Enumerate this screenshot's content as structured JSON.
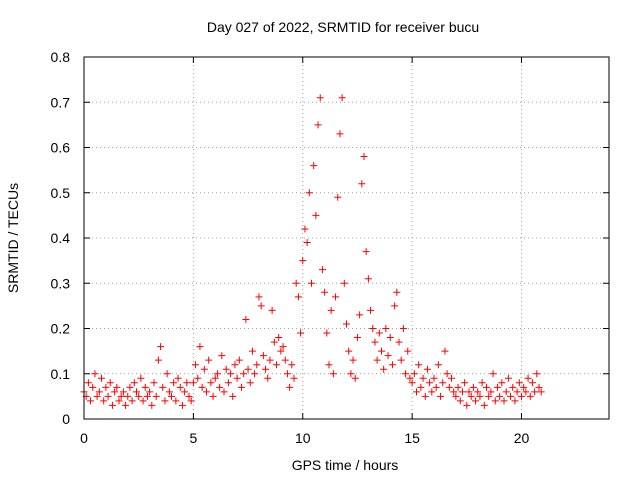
{
  "chart_data": {
    "type": "scatter",
    "title": "Day 027 of 2022, SRMTID for receiver bucu",
    "xlabel": "GPS time / hours",
    "ylabel": "SRMTID / TECUs",
    "xlim": [
      0,
      24
    ],
    "ylim": [
      0,
      0.8
    ],
    "xticks": [
      0,
      5,
      10,
      15,
      20
    ],
    "xtick_labels": [
      "0",
      "5",
      "10",
      "15",
      "20"
    ],
    "yticks": [
      0,
      0.1,
      0.2,
      0.3,
      0.4,
      0.5,
      0.6,
      0.7,
      0.8
    ],
    "ytick_labels": [
      "0",
      "0.1",
      "0.2",
      "0.3",
      "0.4",
      "0.5",
      "0.6",
      "0.7",
      "0.8"
    ],
    "grid": true,
    "marker": "+",
    "color": "#ff0000",
    "series": [
      {
        "name": "SRMTID",
        "points": [
          [
            0.0,
            0.06
          ],
          [
            0.1,
            0.05
          ],
          [
            0.2,
            0.08
          ],
          [
            0.3,
            0.04
          ],
          [
            0.4,
            0.07
          ],
          [
            0.5,
            0.1
          ],
          [
            0.6,
            0.05
          ],
          [
            0.7,
            0.06
          ],
          [
            0.8,
            0.09
          ],
          [
            0.9,
            0.04
          ],
          [
            1.0,
            0.07
          ],
          [
            1.1,
            0.05
          ],
          [
            1.2,
            0.08
          ],
          [
            1.3,
            0.03
          ],
          [
            1.4,
            0.06
          ],
          [
            1.5,
            0.07
          ],
          [
            1.6,
            0.04
          ],
          [
            1.7,
            0.05
          ],
          [
            1.8,
            0.06
          ],
          [
            1.9,
            0.03
          ],
          [
            2.0,
            0.05
          ],
          [
            2.1,
            0.07
          ],
          [
            2.2,
            0.04
          ],
          [
            2.3,
            0.08
          ],
          [
            2.4,
            0.06
          ],
          [
            2.5,
            0.05
          ],
          [
            2.6,
            0.09
          ],
          [
            2.7,
            0.04
          ],
          [
            2.8,
            0.07
          ],
          [
            2.9,
            0.05
          ],
          [
            3.0,
            0.06
          ],
          [
            3.1,
            0.03
          ],
          [
            3.2,
            0.08
          ],
          [
            3.3,
            0.05
          ],
          [
            3.4,
            0.13
          ],
          [
            3.5,
            0.16
          ],
          [
            3.6,
            0.07
          ],
          [
            3.7,
            0.04
          ],
          [
            3.8,
            0.1
          ],
          [
            3.9,
            0.06
          ],
          [
            4.0,
            0.05
          ],
          [
            4.1,
            0.08
          ],
          [
            4.2,
            0.04
          ],
          [
            4.3,
            0.09
          ],
          [
            4.4,
            0.07
          ],
          [
            4.5,
            0.03
          ],
          [
            4.6,
            0.06
          ],
          [
            4.7,
            0.08
          ],
          [
            4.8,
            0.05
          ],
          [
            4.9,
            0.04
          ],
          [
            5.0,
            0.08
          ],
          [
            5.1,
            0.12
          ],
          [
            5.2,
            0.09
          ],
          [
            5.3,
            0.16
          ],
          [
            5.4,
            0.07
          ],
          [
            5.5,
            0.11
          ],
          [
            5.6,
            0.06
          ],
          [
            5.7,
            0.13
          ],
          [
            5.8,
            0.08
          ],
          [
            5.9,
            0.05
          ],
          [
            6.0,
            0.09
          ],
          [
            6.1,
            0.1
          ],
          [
            6.2,
            0.07
          ],
          [
            6.3,
            0.14
          ],
          [
            6.4,
            0.06
          ],
          [
            6.5,
            0.11
          ],
          [
            6.6,
            0.08
          ],
          [
            6.7,
            0.1
          ],
          [
            6.8,
            0.05
          ],
          [
            6.9,
            0.12
          ],
          [
            7.0,
            0.09
          ],
          [
            7.1,
            0.13
          ],
          [
            7.2,
            0.07
          ],
          [
            7.3,
            0.1
          ],
          [
            7.4,
            0.22
          ],
          [
            7.5,
            0.11
          ],
          [
            7.6,
            0.08
          ],
          [
            7.7,
            0.15
          ],
          [
            7.8,
            0.1
          ],
          [
            7.9,
            0.12
          ],
          [
            8.0,
            0.27
          ],
          [
            8.1,
            0.25
          ],
          [
            8.2,
            0.14
          ],
          [
            8.3,
            0.11
          ],
          [
            8.4,
            0.09
          ],
          [
            8.5,
            0.13
          ],
          [
            8.6,
            0.24
          ],
          [
            8.7,
            0.17
          ],
          [
            8.8,
            0.12
          ],
          [
            8.9,
            0.18
          ],
          [
            9.0,
            0.15
          ],
          [
            9.1,
            0.16
          ],
          [
            9.2,
            0.13
          ],
          [
            9.3,
            0.1
          ],
          [
            9.4,
            0.07
          ],
          [
            9.5,
            0.12
          ],
          [
            9.6,
            0.09
          ],
          [
            9.7,
            0.3
          ],
          [
            9.8,
            0.27
          ],
          [
            9.9,
            0.19
          ],
          [
            10.0,
            0.35
          ],
          [
            10.1,
            0.42
          ],
          [
            10.2,
            0.39
          ],
          [
            10.3,
            0.5
          ],
          [
            10.4,
            0.3
          ],
          [
            10.5,
            0.56
          ],
          [
            10.6,
            0.45
          ],
          [
            10.7,
            0.65
          ],
          [
            10.8,
            0.71
          ],
          [
            10.9,
            0.33
          ],
          [
            11.0,
            0.28
          ],
          [
            11.1,
            0.19
          ],
          [
            11.2,
            0.12
          ],
          [
            11.3,
            0.24
          ],
          [
            11.4,
            0.1
          ],
          [
            11.5,
            0.27
          ],
          [
            11.6,
            0.49
          ],
          [
            11.7,
            0.63
          ],
          [
            11.8,
            0.71
          ],
          [
            11.9,
            0.3
          ],
          [
            12.0,
            0.21
          ],
          [
            12.1,
            0.15
          ],
          [
            12.2,
            0.1
          ],
          [
            12.3,
            0.13
          ],
          [
            12.4,
            0.09
          ],
          [
            12.5,
            0.18
          ],
          [
            12.6,
            0.23
          ],
          [
            12.7,
            0.52
          ],
          [
            12.8,
            0.58
          ],
          [
            12.9,
            0.37
          ],
          [
            13.0,
            0.31
          ],
          [
            13.1,
            0.24
          ],
          [
            13.2,
            0.2
          ],
          [
            13.3,
            0.17
          ],
          [
            13.4,
            0.13
          ],
          [
            13.5,
            0.19
          ],
          [
            13.6,
            0.15
          ],
          [
            13.7,
            0.11
          ],
          [
            13.8,
            0.2
          ],
          [
            13.9,
            0.14
          ],
          [
            14.0,
            0.18
          ],
          [
            14.1,
            0.12
          ],
          [
            14.2,
            0.25
          ],
          [
            14.3,
            0.28
          ],
          [
            14.4,
            0.17
          ],
          [
            14.5,
            0.13
          ],
          [
            14.6,
            0.2
          ],
          [
            14.7,
            0.1
          ],
          [
            14.8,
            0.15
          ],
          [
            14.9,
            0.09
          ],
          [
            15.0,
            0.08
          ],
          [
            15.1,
            0.1
          ],
          [
            15.2,
            0.06
          ],
          [
            15.3,
            0.12
          ],
          [
            15.4,
            0.07
          ],
          [
            15.5,
            0.09
          ],
          [
            15.6,
            0.05
          ],
          [
            15.7,
            0.11
          ],
          [
            15.8,
            0.08
          ],
          [
            15.9,
            0.06
          ],
          [
            16.0,
            0.09
          ],
          [
            16.1,
            0.07
          ],
          [
            16.2,
            0.12
          ],
          [
            16.3,
            0.05
          ],
          [
            16.4,
            0.08
          ],
          [
            16.5,
            0.15
          ],
          [
            16.6,
            0.1
          ],
          [
            16.7,
            0.07
          ],
          [
            16.8,
            0.09
          ],
          [
            16.9,
            0.06
          ],
          [
            17.0,
            0.05
          ],
          [
            17.1,
            0.07
          ],
          [
            17.2,
            0.04
          ],
          [
            17.3,
            0.06
          ],
          [
            17.4,
            0.08
          ],
          [
            17.5,
            0.03
          ],
          [
            17.6,
            0.06
          ],
          [
            17.7,
            0.05
          ],
          [
            17.8,
            0.07
          ],
          [
            17.9,
            0.04
          ],
          [
            18.0,
            0.06
          ],
          [
            18.1,
            0.05
          ],
          [
            18.2,
            0.08
          ],
          [
            18.3,
            0.03
          ],
          [
            18.4,
            0.07
          ],
          [
            18.5,
            0.05
          ],
          [
            18.6,
            0.06
          ],
          [
            18.7,
            0.1
          ],
          [
            18.8,
            0.04
          ],
          [
            18.9,
            0.07
          ],
          [
            19.0,
            0.05
          ],
          [
            19.1,
            0.08
          ],
          [
            19.2,
            0.04
          ],
          [
            19.3,
            0.06
          ],
          [
            19.4,
            0.09
          ],
          [
            19.5,
            0.05
          ],
          [
            19.6,
            0.07
          ],
          [
            19.7,
            0.04
          ],
          [
            19.8,
            0.06
          ],
          [
            19.9,
            0.08
          ],
          [
            20.0,
            0.05
          ],
          [
            20.1,
            0.07
          ],
          [
            20.2,
            0.06
          ],
          [
            20.3,
            0.09
          ],
          [
            20.4,
            0.05
          ],
          [
            20.5,
            0.08
          ],
          [
            20.6,
            0.06
          ],
          [
            20.7,
            0.1
          ],
          [
            20.8,
            0.07
          ],
          [
            20.9,
            0.06
          ]
        ]
      }
    ]
  }
}
